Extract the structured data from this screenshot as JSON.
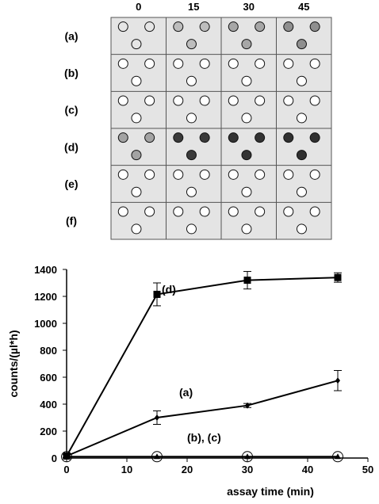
{
  "plate": {
    "time_labels": [
      "0",
      "15",
      "30",
      "45"
    ],
    "rows": [
      {
        "label": "(a)",
        "fills": [
          "#e6e6e6",
          "#bdbdbd",
          "#a6a6a6",
          "#8f8f8f"
        ]
      },
      {
        "label": "(b)",
        "fills": [
          "#ffffff",
          "#ffffff",
          "#ffffff",
          "#ffffff"
        ]
      },
      {
        "label": "(c)",
        "fills": [
          "#ffffff",
          "#ffffff",
          "#ffffff",
          "#ffffff"
        ]
      },
      {
        "label": "(d)",
        "fills": [
          "#a3a3a3",
          "#3a3a3a",
          "#333333",
          "#303030"
        ]
      },
      {
        "label": "(e)",
        "fills": [
          "#ffffff",
          "#ffffff",
          "#ffffff",
          "#ffffff"
        ]
      },
      {
        "label": "(f)",
        "fills": [
          "#ffffff",
          "#ffffff",
          "#ffffff",
          "#ffffff"
        ]
      }
    ],
    "colors": {
      "background": "#e4e4e4",
      "grid": "#555555"
    }
  },
  "chart_data": {
    "type": "line",
    "xlabel": "assay time (min)",
    "ylabel": "counts/(µl*h)",
    "xlim": [
      0,
      50
    ],
    "ylim": [
      0,
      1400
    ],
    "x_ticks": [
      "0",
      "10",
      "20",
      "30",
      "40",
      "50"
    ],
    "y_ticks": [
      "0",
      "200",
      "400",
      "600",
      "800",
      "1000",
      "1200",
      "1400"
    ],
    "grid": false,
    "series": [
      {
        "name": "(d)",
        "marker": "square",
        "x": [
          0,
          15,
          30,
          45
        ],
        "y": [
          15,
          1215,
          1320,
          1340
        ],
        "err": [
          10,
          85,
          65,
          35
        ]
      },
      {
        "name": "(a)",
        "marker": "diamond",
        "x": [
          0,
          15,
          30,
          45
        ],
        "y": [
          15,
          300,
          390,
          575
        ],
        "err": [
          10,
          50,
          15,
          75
        ]
      },
      {
        "name": "(b), (c)",
        "marker": "triangle-circle",
        "x": [
          0,
          15,
          30,
          45
        ],
        "y": [
          10,
          10,
          10,
          10
        ],
        "err": [
          0,
          0,
          0,
          0
        ]
      }
    ]
  }
}
